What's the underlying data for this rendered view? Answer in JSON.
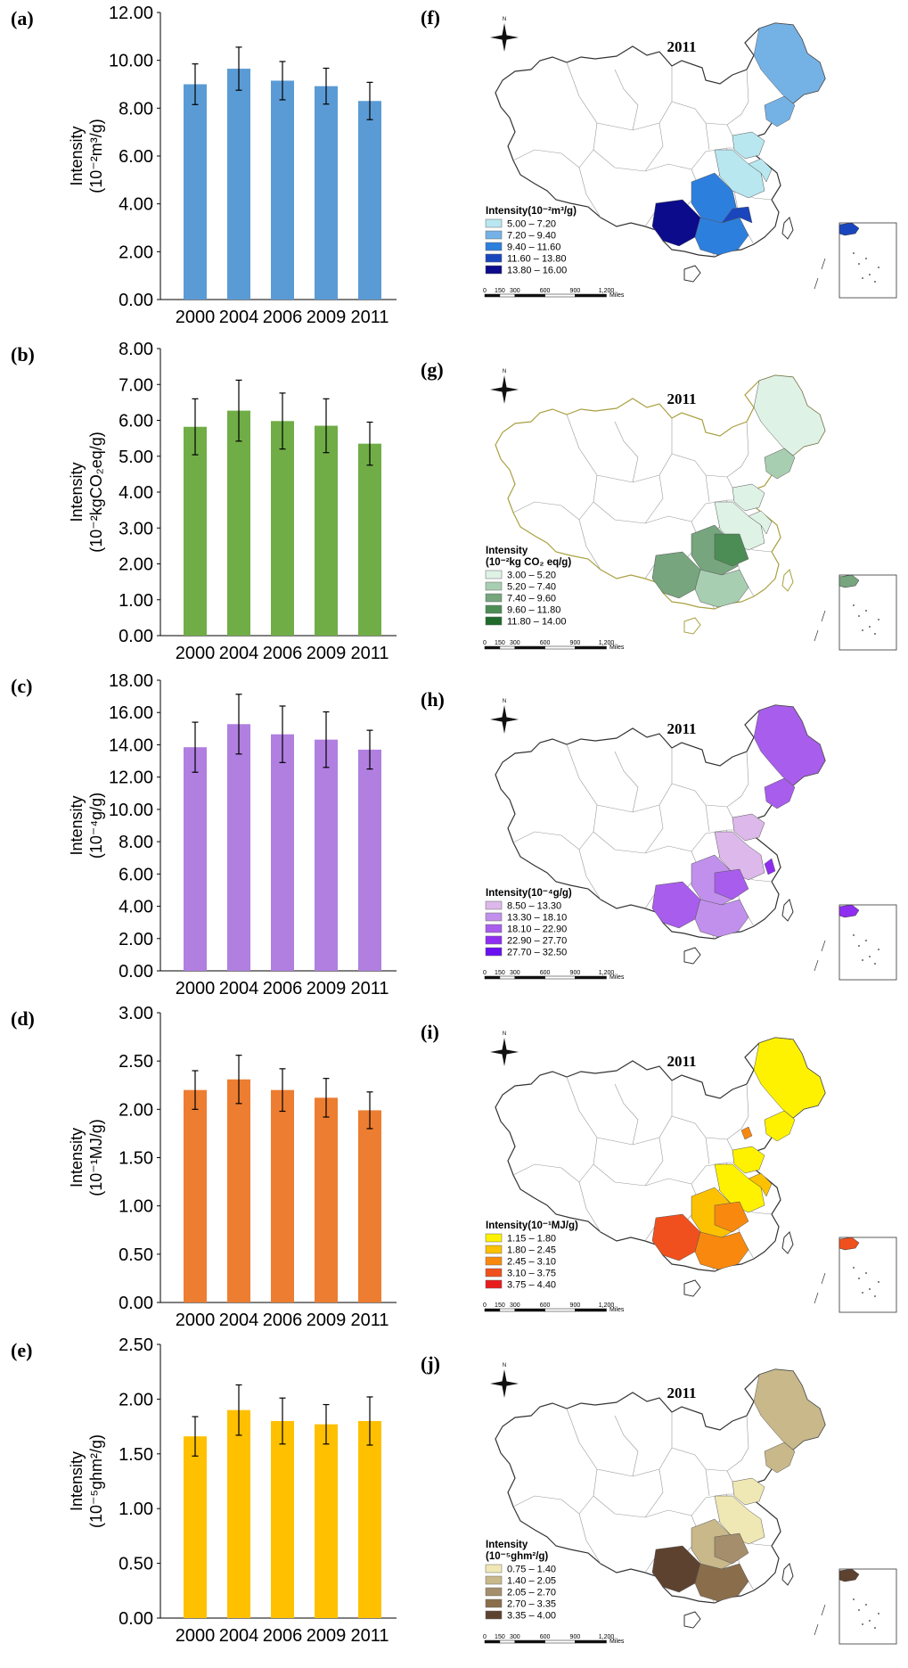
{
  "chart_data": [
    {
      "type": "bar",
      "label": "(a)",
      "categories": [
        "2000",
        "2004",
        "2006",
        "2009",
        "2011"
      ],
      "values": [
        9.0,
        9.65,
        9.15,
        8.92,
        8.3
      ],
      "errors": [
        0.85,
        0.9,
        0.8,
        0.75,
        0.78
      ],
      "ylim": [
        0,
        12
      ],
      "yticks": [
        "0.00",
        "2.00",
        "4.00",
        "6.00",
        "8.00",
        "10.00",
        "12.00"
      ],
      "ylabel": "Intensity (10⁻²m³/g)",
      "color": "#5b9bd5"
    },
    {
      "type": "bar",
      "label": "(b)",
      "categories": [
        "2000",
        "2004",
        "2006",
        "2009",
        "2011"
      ],
      "values": [
        5.82,
        6.27,
        5.98,
        5.85,
        5.35
      ],
      "errors": [
        0.78,
        0.85,
        0.78,
        0.75,
        0.6
      ],
      "ylim": [
        0,
        8
      ],
      "yticks": [
        "0.00",
        "1.00",
        "2.00",
        "3.00",
        "4.00",
        "5.00",
        "6.00",
        "7.00",
        "8.00"
      ],
      "ylabel": "Intensity (10⁻²kgCO₂eq/g)",
      "color": "#70ad47"
    },
    {
      "type": "bar",
      "label": "(c)",
      "categories": [
        "2000",
        "2004",
        "2006",
        "2009",
        "2011"
      ],
      "values": [
        13.85,
        15.28,
        14.65,
        14.32,
        13.7
      ],
      "errors": [
        1.55,
        1.85,
        1.75,
        1.72,
        1.2
      ],
      "ylim": [
        0,
        18
      ],
      "yticks": [
        "0.00",
        "2.00",
        "4.00",
        "6.00",
        "8.00",
        "10.00",
        "12.00",
        "14.00",
        "16.00",
        "18.00"
      ],
      "ylabel": "Intensity (10⁻⁴g/g)",
      "color": "#b07fe0"
    },
    {
      "type": "bar",
      "label": "(d)",
      "categories": [
        "2000",
        "2004",
        "2006",
        "2009",
        "2011"
      ],
      "values": [
        2.2,
        2.31,
        2.2,
        2.12,
        1.99
      ],
      "errors": [
        0.2,
        0.25,
        0.22,
        0.2,
        0.19
      ],
      "ylim": [
        0,
        3
      ],
      "yticks": [
        "0.00",
        "0.50",
        "1.00",
        "1.50",
        "2.00",
        "2.50",
        "3.00"
      ],
      "ylabel": "Intensity (10⁻¹MJ/g)",
      "color": "#ed7d31"
    },
    {
      "type": "bar",
      "label": "(e)",
      "categories": [
        "2000",
        "2004",
        "2006",
        "2009",
        "2011"
      ],
      "values": [
        1.66,
        1.9,
        1.8,
        1.77,
        1.8
      ],
      "errors": [
        0.18,
        0.23,
        0.21,
        0.18,
        0.22
      ],
      "ylim": [
        0,
        2.5
      ],
      "yticks": [
        "0.00",
        "0.50",
        "1.00",
        "1.50",
        "2.00",
        "2.50"
      ],
      "ylabel": "Intensity (10⁻⁵ghm²/g)",
      "color": "#ffc000"
    }
  ],
  "maps": [
    {
      "label": "(f)",
      "title": "2011",
      "north": "N",
      "legend_title": [
        "Intensity(10⁻²m³/g)"
      ],
      "legend": [
        "5.00 – 7.20",
        "7.20 – 9.40",
        "9.40 – 11.60",
        "11.60 – 13.80",
        "13.80 – 16.00"
      ],
      "colors": [
        "#b8e7ef",
        "#74b2e6",
        "#2d7fdd",
        "#1a46bd",
        "#0b0b8c"
      ],
      "border": "#333333",
      "scale": [
        "0",
        "150",
        "300",
        "600",
        "900",
        "1,200"
      ],
      "scale_unit": "Miles"
    },
    {
      "label": "(g)",
      "title": "2011",
      "north": "N",
      "legend_title": [
        "Intensity",
        "(10⁻²kg CO₂ eq/g)"
      ],
      "legend": [
        "3.00 – 5.20",
        "5.20 – 7.40",
        "7.40 – 9.60",
        "9.60 – 11.80",
        "11.80 – 14.00"
      ],
      "colors": [
        "#dff2e6",
        "#a8ceb1",
        "#76a57e",
        "#4c8d55",
        "#1f6b2c"
      ],
      "border": "#a8a040",
      "scale": [
        "0",
        "150",
        "300",
        "600",
        "900",
        "1,200"
      ],
      "scale_unit": "Miles"
    },
    {
      "label": "(h)",
      "title": "2011",
      "north": "N",
      "legend_title": [
        "Intensity(10⁻⁴g/g)"
      ],
      "legend": [
        "8.50 – 13.30",
        "13.30 – 18.10",
        "18.10 – 22.90",
        "22.90 – 27.70",
        "27.70 – 32.50"
      ],
      "colors": [
        "#ddb8ea",
        "#c190ec",
        "#a85ded",
        "#8f2ef0",
        "#6a0ff2"
      ],
      "border": "#333333",
      "scale": [
        "0",
        "150",
        "300",
        "600",
        "900",
        "1,200"
      ],
      "scale_unit": "Miles"
    },
    {
      "label": "(i)",
      "title": "2011",
      "north": "N",
      "legend_title": [
        "Intensity(10⁻¹MJ/g)"
      ],
      "legend": [
        "1.15 – 1.80",
        "1.80 – 2.45",
        "2.45 – 3.10",
        "3.10 – 3.75",
        "3.75 – 4.40"
      ],
      "colors": [
        "#fef200",
        "#fcc100",
        "#f8890e",
        "#f0501e",
        "#e81c1c"
      ],
      "border": "#333333",
      "scale": [
        "0",
        "150",
        "300",
        "600",
        "900",
        "1,200"
      ],
      "scale_unit": "Miles"
    },
    {
      "label": "(j)",
      "title": "2011",
      "north": "N",
      "legend_title": [
        "Intensity",
        "(10⁻⁵ghm²/g)"
      ],
      "legend": [
        "0.75 – 1.40",
        "1.40 – 2.05",
        "2.05 – 2.70",
        "2.70 – 3.35",
        "3.35 – 4.00"
      ],
      "colors": [
        "#f0e8b4",
        "#c8b88a",
        "#a58e6c",
        "#8a6e4c",
        "#5e4230"
      ],
      "border": "#333333",
      "scale": [
        "0",
        "150",
        "300",
        "600",
        "900",
        "1,200"
      ],
      "scale_unit": "Miles"
    }
  ]
}
